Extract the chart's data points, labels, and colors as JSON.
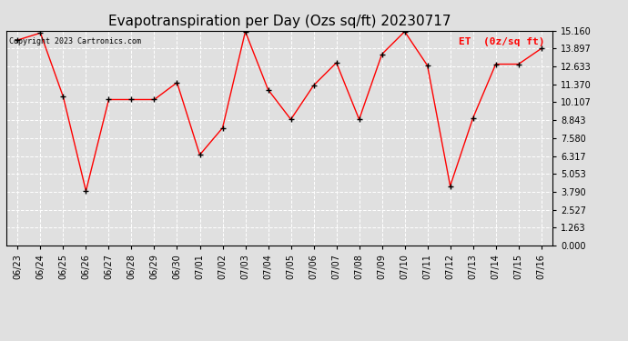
{
  "title": "Evapotranspiration per Day (Ozs sq/ft) 20230717",
  "legend_label": "ET  (0z/sq ft)",
  "copyright_text": "Copyright 2023 Cartronics.com",
  "dates": [
    "06/23",
    "06/24",
    "06/25",
    "06/26",
    "06/27",
    "06/28",
    "06/29",
    "06/30",
    "07/01",
    "07/02",
    "07/03",
    "07/04",
    "07/05",
    "07/06",
    "07/07",
    "07/08",
    "07/09",
    "07/10",
    "07/11",
    "07/12",
    "07/13",
    "07/14",
    "07/15",
    "07/16"
  ],
  "values": [
    14.5,
    15.0,
    10.5,
    3.85,
    10.3,
    10.3,
    10.3,
    11.5,
    6.4,
    8.3,
    15.1,
    11.0,
    8.9,
    11.3,
    12.9,
    8.9,
    13.5,
    15.1,
    12.7,
    4.2,
    9.0,
    12.8,
    12.8,
    13.9
  ],
  "yticks": [
    0.0,
    1.263,
    2.527,
    3.79,
    5.053,
    6.317,
    7.58,
    8.843,
    10.107,
    11.37,
    12.633,
    13.897,
    15.16
  ],
  "ylim": [
    0.0,
    15.16
  ],
  "line_color": "red",
  "marker_color": "black",
  "background_color": "#e0e0e0",
  "grid_color": "#ffffff",
  "title_fontsize": 11,
  "tick_fontsize": 7,
  "legend_fontsize": 8,
  "copyright_fontsize": 6
}
